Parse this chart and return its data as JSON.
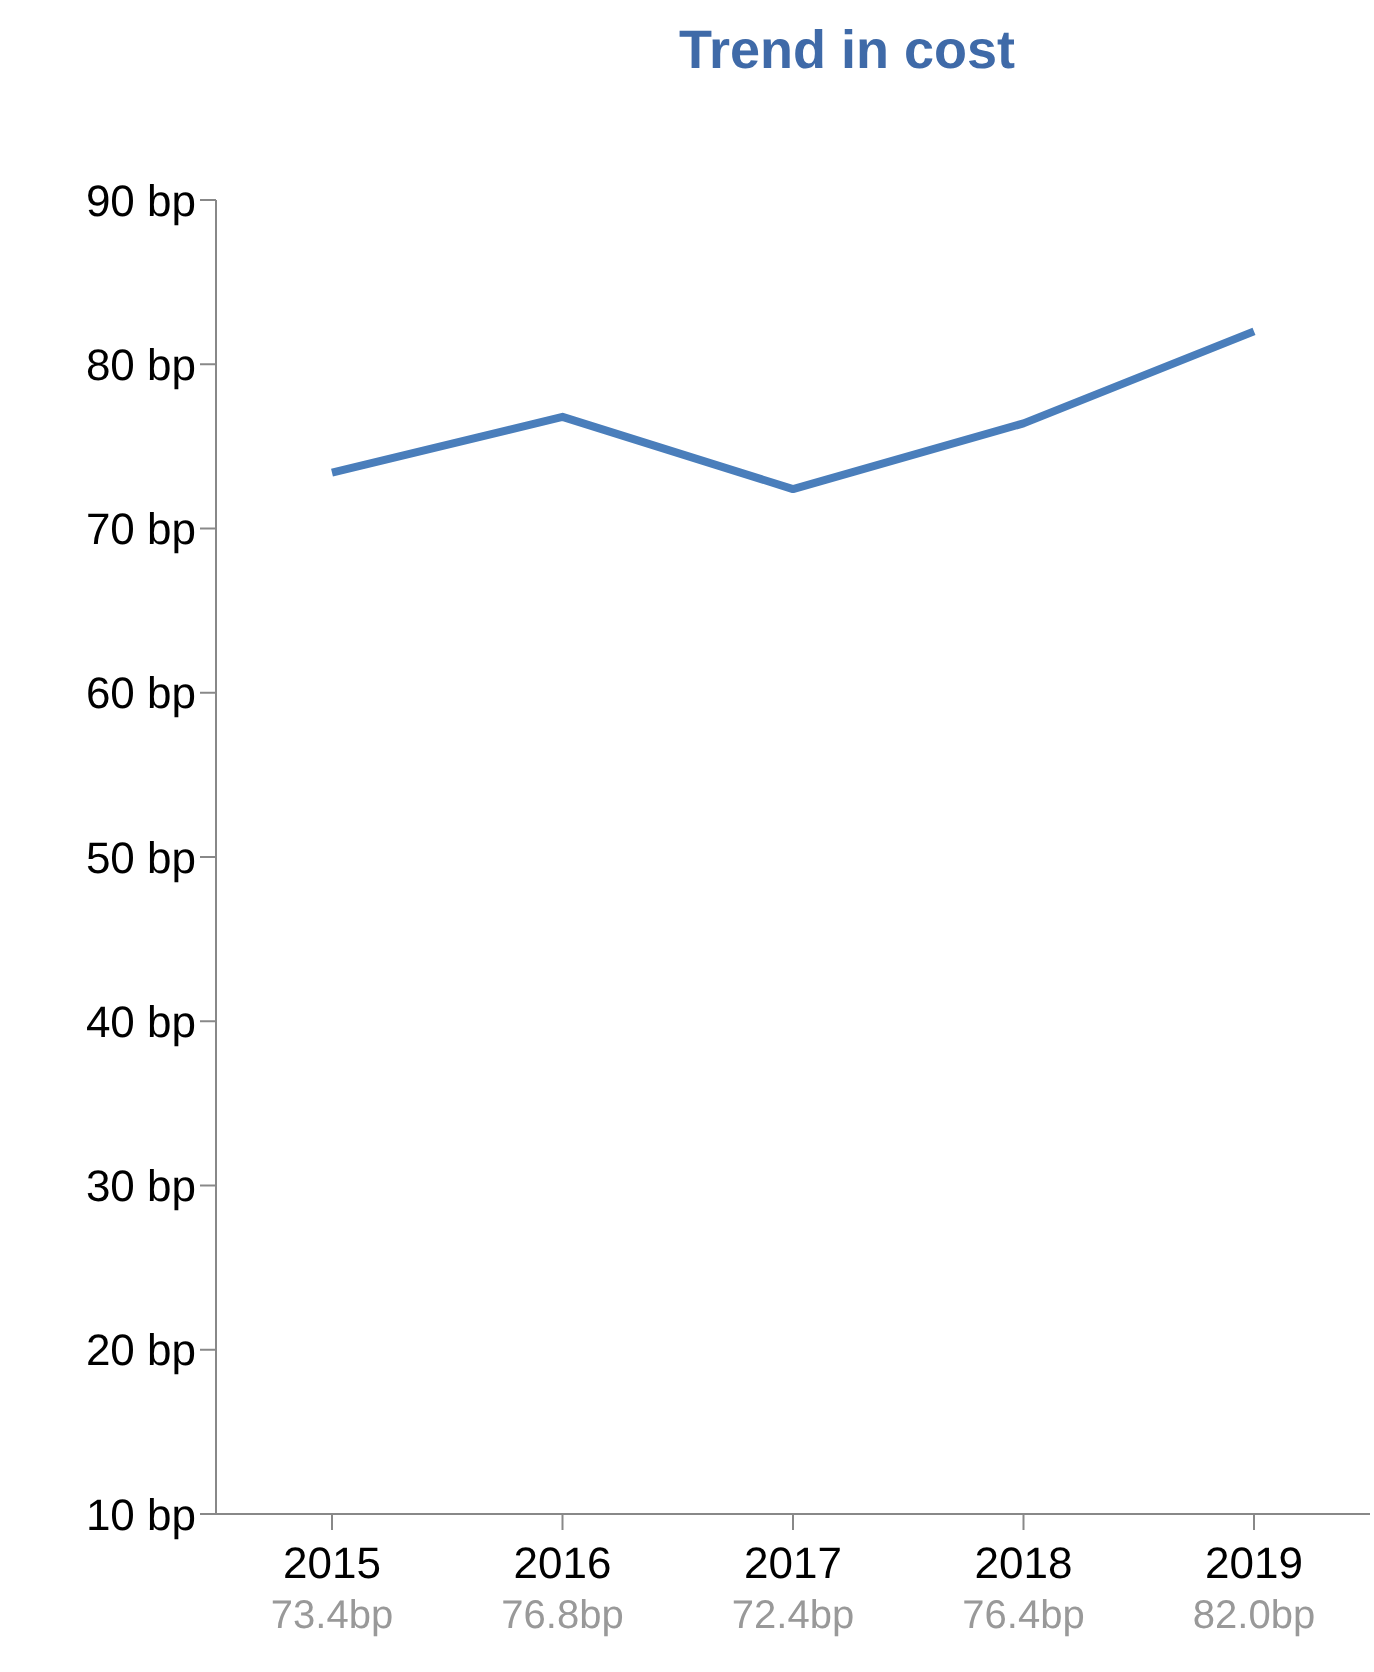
{
  "chart_data": {
    "type": "line",
    "title": "Trend in cost",
    "categories": [
      "2015",
      "2016",
      "2017",
      "2018",
      "2019"
    ],
    "series": [
      {
        "color": "#4a7ebb",
        "values": [
          73.4,
          76.8,
          72.4,
          76.4,
          82.0
        ],
        "value_labels": [
          "73.4bp",
          "76.8bp",
          "72.4bp",
          "76.4bp",
          "82.0bp"
        ]
      }
    ],
    "ylim": [
      10,
      90
    ],
    "yticks": [
      {
        "value": 10,
        "label": "10 bp"
      },
      {
        "value": 20,
        "label": "20 bp"
      },
      {
        "value": 30,
        "label": "30 bp"
      },
      {
        "value": 40,
        "label": "40 bp"
      },
      {
        "value": 50,
        "label": "50 bp"
      },
      {
        "value": 60,
        "label": "60 bp"
      },
      {
        "value": 70,
        "label": "70 bp"
      },
      {
        "value": 80,
        "label": "80 bp"
      },
      {
        "value": 90,
        "label": "90 bp"
      }
    ],
    "grid": false,
    "legend": false,
    "marker": "none",
    "line_style": "solid"
  }
}
